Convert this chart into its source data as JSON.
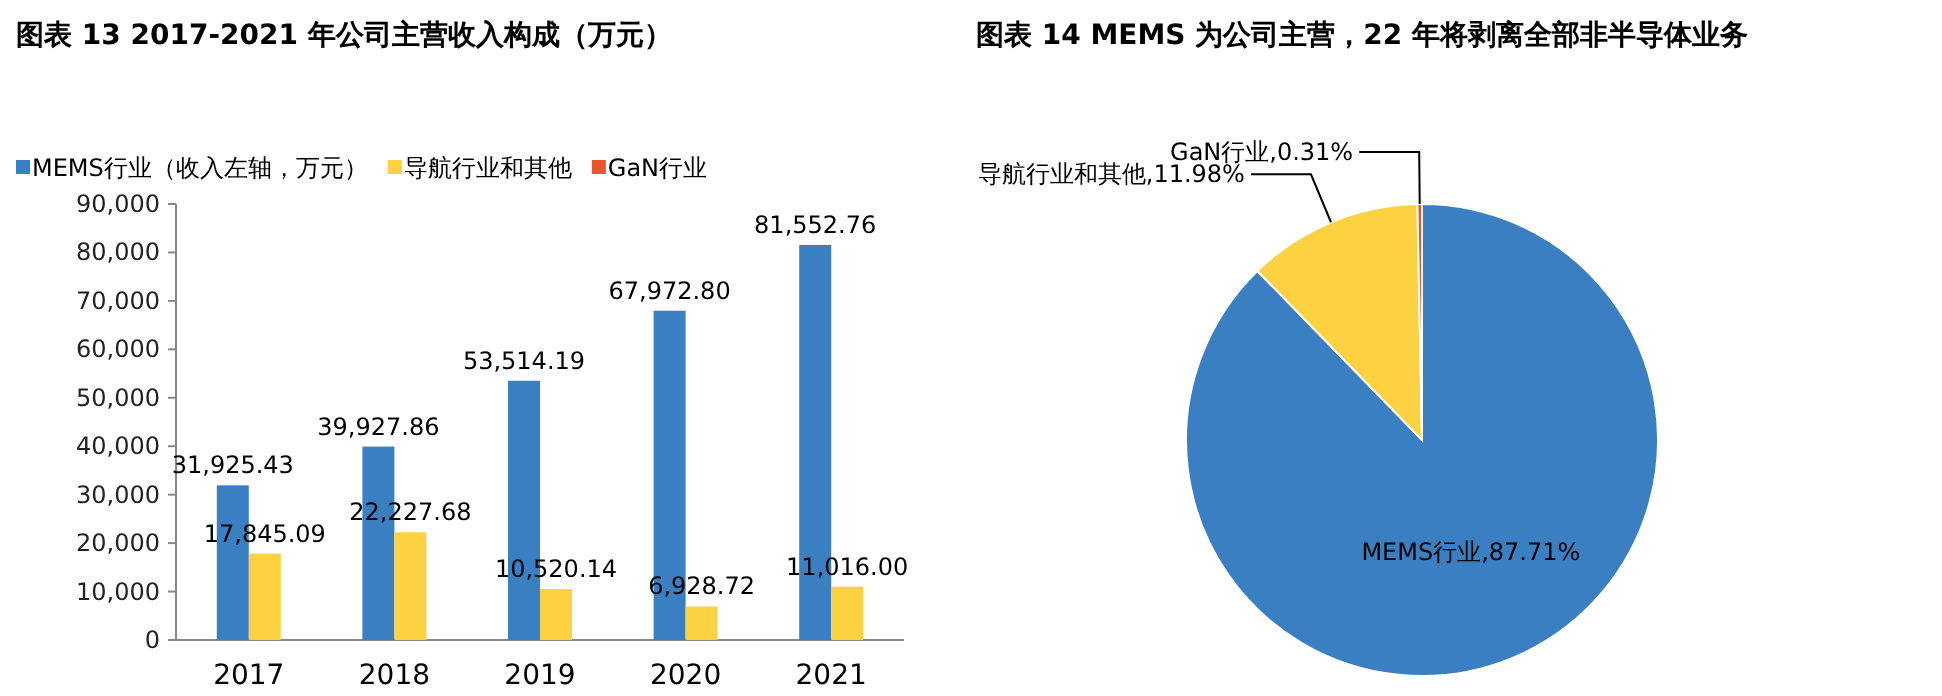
{
  "chart_data": [
    {
      "type": "bar",
      "title": "图表 13 2017-2021 年公司主营收入构成（万元）",
      "categories": [
        "2017",
        "2018",
        "2019",
        "2020",
        "2021"
      ],
      "series": [
        {
          "name": "MEMS行业（收入左轴，万元）",
          "color": "#3a7fc1",
          "values": [
            31925.43,
            39927.86,
            53514.19,
            67972.8,
            81552.76
          ],
          "value_labels": [
            "31,925.43",
            "39,927.86",
            "53,514.19",
            "67,972.80",
            "81,552.76"
          ]
        },
        {
          "name": "导航行业和其他",
          "color": "#fcd243",
          "values": [
            17845.09,
            22227.68,
            10520.14,
            6928.72,
            11016.0
          ],
          "value_labels": [
            "17,845.09",
            "22,227.68",
            "10,520.14",
            "6,928.72",
            "11,016.00"
          ]
        },
        {
          "name": "GaN行业",
          "color": "#e8542c",
          "values": [
            null,
            null,
            null,
            null,
            null
          ]
        }
      ],
      "ylim": [
        0,
        90000
      ],
      "yticks": [
        0,
        {
          "value": 10000,
          "label": "10,000"
        },
        {
          "value": 20000,
          "label": "20,000"
        },
        {
          "value": 30000,
          "label": "30,000"
        },
        {
          "value": 40000,
          "label": "40,000"
        },
        {
          "value": 50000,
          "label": "50,000"
        },
        {
          "value": 60000,
          "label": "60,000"
        },
        {
          "value": 70000,
          "label": "70,000"
        },
        {
          "value": 80000,
          "label": "80,000"
        },
        {
          "value": 90000,
          "label": "90,000"
        }
      ],
      "grid": false,
      "legend": "top"
    },
    {
      "type": "pie",
      "title": "图表 14 MEMS 为公司主营，22 年将剥离全部非半导体业务",
      "categories": [
        "MEMS行业",
        "导航行业和其他",
        "GaN行业"
      ],
      "values": [
        87.71,
        11.98,
        0.31
      ],
      "colors": [
        "#3a7fc1",
        "#fcd243",
        "#e8542c"
      ],
      "value_labels": [
        "87.71%",
        "11.98%",
        "0.31%"
      ]
    }
  ]
}
